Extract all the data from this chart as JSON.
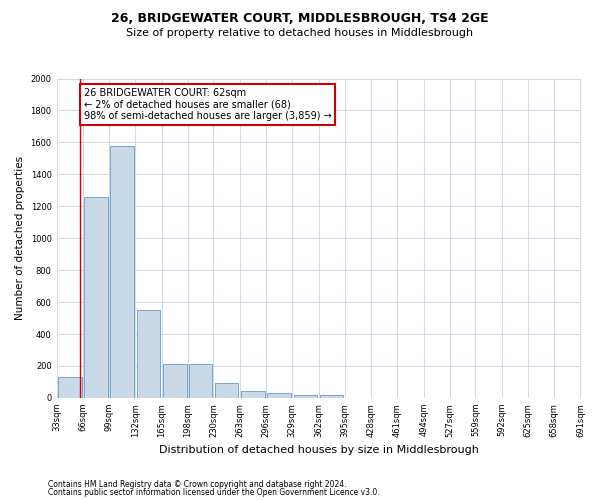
{
  "title": "26, BRIDGEWATER COURT, MIDDLESBROUGH, TS4 2GE",
  "subtitle": "Size of property relative to detached houses in Middlesbrough",
  "xlabel": "Distribution of detached houses by size in Middlesbrough",
  "ylabel": "Number of detached properties",
  "footnote1": "Contains HM Land Registry data © Crown copyright and database right 2024.",
  "footnote2": "Contains public sector information licensed under the Open Government Licence v3.0.",
  "annotation_line1": "26 BRIDGEWATER COURT: 62sqm",
  "annotation_line2": "← 2% of detached houses are smaller (68)",
  "annotation_line3": "98% of semi-detached houses are larger (3,859) →",
  "bar_color": "#c9d9e8",
  "bar_edge_color": "#6699cc",
  "highlight_line_color": "#cc0000",
  "annotation_box_edge_color": "#cc0000",
  "bin_edges": [
    33,
    66,
    99,
    132,
    165,
    198,
    230,
    263,
    296,
    329,
    362,
    395,
    428,
    461,
    494,
    527,
    559,
    592,
    625,
    658,
    691
  ],
  "bin_labels": [
    "33sqm",
    "66sqm",
    "99sqm",
    "132sqm",
    "165sqm",
    "198sqm",
    "230sqm",
    "263sqm",
    "296sqm",
    "329sqm",
    "362sqm",
    "395sqm",
    "428sqm",
    "461sqm",
    "494sqm",
    "527sqm",
    "559sqm",
    "592sqm",
    "625sqm",
    "658sqm",
    "691sqm"
  ],
  "values": [
    130,
    1260,
    1580,
    550,
    215,
    215,
    95,
    45,
    30,
    20,
    20,
    0,
    0,
    0,
    0,
    0,
    0,
    0,
    0,
    0
  ],
  "property_size": 62,
  "ylim": [
    0,
    2000
  ],
  "yticks": [
    0,
    200,
    400,
    600,
    800,
    1000,
    1200,
    1400,
    1600,
    1800,
    2000
  ],
  "background_color": "#ffffff",
  "grid_color": "#d0d8e8",
  "title_fontsize": 9,
  "subtitle_fontsize": 8,
  "ylabel_fontsize": 7.5,
  "xlabel_fontsize": 8,
  "tick_fontsize": 6,
  "annotation_fontsize": 7,
  "footnote_fontsize": 5.5
}
